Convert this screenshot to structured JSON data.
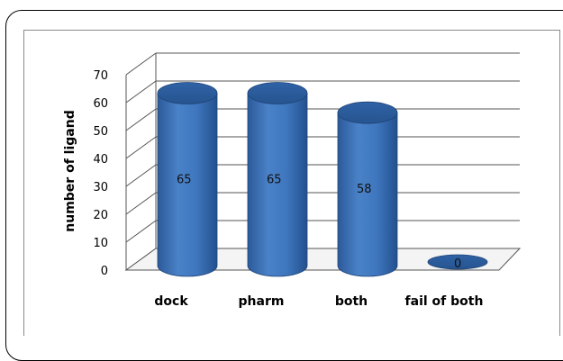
{
  "chart_data": {
    "type": "bar",
    "style": "3d-cylinder",
    "categories": [
      "dock",
      "pharm",
      "both",
      "fail of both"
    ],
    "values": [
      65,
      65,
      58,
      0
    ],
    "data_labels": [
      "65",
      "65",
      "58",
      "0"
    ],
    "title": "",
    "xlabel": "",
    "ylabel": "number of ligand",
    "ylim": [
      0,
      70
    ],
    "yticks": [
      "0",
      "10",
      "20",
      "30",
      "40",
      "50",
      "60",
      "70"
    ],
    "grid": true,
    "legend": "none",
    "bar_color": "#3a6fb8"
  }
}
